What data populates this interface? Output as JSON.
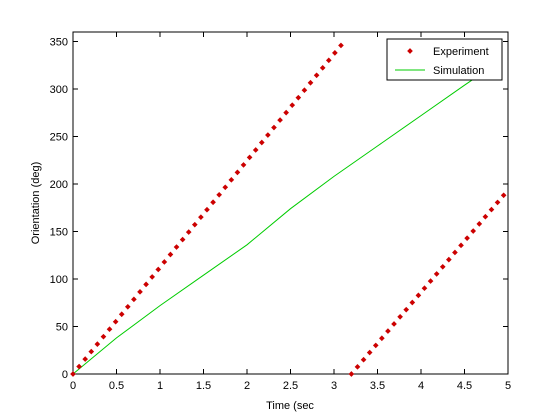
{
  "chart_data": {
    "type": "line",
    "title": "",
    "xlabel": "Time (sec",
    "ylabel": "Orientation (deg)",
    "xlim": [
      0,
      5
    ],
    "ylim": [
      0,
      360
    ],
    "xticks": [
      0,
      0.5,
      1,
      1.5,
      2,
      2.5,
      3,
      3.5,
      4,
      4.5,
      5
    ],
    "xtick_labels": [
      "0",
      "0.5",
      "1",
      "1.5",
      "2",
      "2.5",
      "3",
      "3.5",
      "4",
      "4.5",
      "5"
    ],
    "yticks": [
      0,
      50,
      100,
      150,
      200,
      250,
      300,
      350
    ],
    "ytick_labels": [
      "0",
      "50",
      "100",
      "150",
      "200",
      "250",
      "300",
      "350"
    ],
    "grid": false,
    "legend_position": "top-right",
    "series": [
      {
        "name": "Experiment",
        "style": "dotted-markers",
        "color": "#cc0000",
        "segments": [
          {
            "x_start": 0,
            "x_end": 3.13,
            "step": 0.07,
            "y_at_start": 0,
            "slope_deg_per_sec": 112.3
          },
          {
            "x_start": 3.2,
            "x_end": 5.0,
            "step": 0.07,
            "y_at_start": 0,
            "slope_deg_per_sec": 107.5
          }
        ]
      },
      {
        "name": "Simulation",
        "style": "solid-line",
        "color": "#00cc00",
        "x": [
          0,
          0.5,
          1,
          1.5,
          2,
          2.5,
          3,
          3.5,
          4,
          4.5,
          4.82
        ],
        "y": [
          0,
          38,
          72,
          104,
          136,
          174,
          208,
          240,
          272,
          304,
          324
        ]
      }
    ]
  }
}
